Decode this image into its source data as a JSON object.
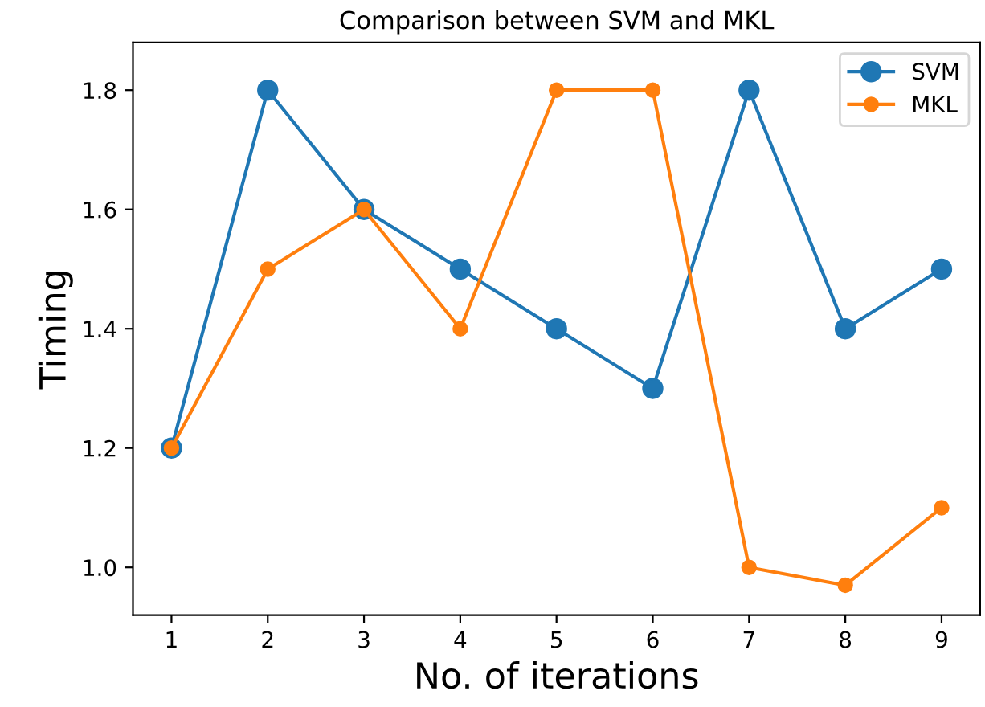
{
  "chart_data": {
    "type": "line",
    "title": "Comparison between SVM and MKL",
    "xlabel": "No. of iterations",
    "ylabel": "Timing",
    "x": [
      1,
      2,
      3,
      4,
      5,
      6,
      7,
      8,
      9
    ],
    "series": [
      {
        "name": "SVM",
        "color": "#1f77b4",
        "values": [
          1.2,
          1.8,
          1.6,
          1.5,
          1.4,
          1.3,
          1.8,
          1.4,
          1.5
        ]
      },
      {
        "name": "MKL",
        "color": "#ff7f0e",
        "values": [
          1.2,
          1.5,
          1.6,
          1.4,
          1.8,
          1.8,
          1.0,
          0.97,
          1.1
        ]
      }
    ],
    "xlim": [
      0.6,
      9.4
    ],
    "ylim": [
      0.92,
      1.88
    ],
    "xticks": [
      1,
      2,
      3,
      4,
      5,
      6,
      7,
      8,
      9
    ],
    "yticks": [
      {
        "value": 1.0,
        "label": "1.0"
      },
      1.2,
      1.4,
      1.6,
      1.8
    ],
    "grid": false,
    "legend": "top right",
    "marker": "circle",
    "line_style": "solid"
  }
}
